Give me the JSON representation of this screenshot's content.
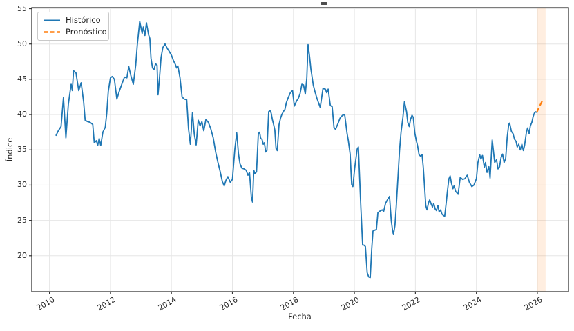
{
  "chart_data": {
    "type": "line",
    "title": "",
    "xlabel": "Fecha",
    "ylabel": "Índice",
    "xlim": [
      2009.42,
      2027.02
    ],
    "ylim": [
      14.9,
      55.15
    ],
    "xticks": [
      2010,
      2012,
      2014,
      2016,
      2018,
      2020,
      2022,
      2024,
      2026
    ],
    "yticks": [
      20,
      25,
      30,
      35,
      40,
      45,
      50,
      55
    ],
    "grid": true,
    "legend_position": "upper left",
    "colors": {
      "historical": "#1f77b4",
      "forecast": "#ff7f0e",
      "grid": "#e6e6e6",
      "spine": "#454545",
      "tick_text": "#262626"
    },
    "forecast_band": {
      "x0": 2025.98,
      "x1": 2026.27,
      "color": "#ff7f0e",
      "opacity": 0.13
    },
    "series": [
      {
        "name": "Histórico",
        "color": "#1f77b4",
        "style": "solid",
        "points": [
          [
            2010.21,
            37.0
          ],
          [
            2010.29,
            37.7
          ],
          [
            2010.38,
            38.3
          ],
          [
            2010.46,
            42.4
          ],
          [
            2010.54,
            36.7
          ],
          [
            2010.62,
            41.5
          ],
          [
            2010.71,
            44.3
          ],
          [
            2010.75,
            43.4
          ],
          [
            2010.79,
            46.2
          ],
          [
            2010.87,
            45.9
          ],
          [
            2010.96,
            43.4
          ],
          [
            2011.04,
            44.5
          ],
          [
            2011.12,
            41.8
          ],
          [
            2011.17,
            39.2
          ],
          [
            2011.25,
            39.0
          ],
          [
            2011.33,
            38.9
          ],
          [
            2011.42,
            38.6
          ],
          [
            2011.47,
            36.0
          ],
          [
            2011.54,
            36.3
          ],
          [
            2011.58,
            35.6
          ],
          [
            2011.63,
            36.6
          ],
          [
            2011.68,
            35.6
          ],
          [
            2011.75,
            37.5
          ],
          [
            2011.83,
            38.2
          ],
          [
            2011.88,
            40.2
          ],
          [
            2011.93,
            43.3
          ],
          [
            2012.0,
            45.2
          ],
          [
            2012.06,
            45.4
          ],
          [
            2012.13,
            45.0
          ],
          [
            2012.21,
            42.2
          ],
          [
            2012.29,
            43.3
          ],
          [
            2012.38,
            44.4
          ],
          [
            2012.46,
            45.3
          ],
          [
            2012.54,
            45.2
          ],
          [
            2012.6,
            46.8
          ],
          [
            2012.67,
            45.5
          ],
          [
            2012.75,
            44.3
          ],
          [
            2012.83,
            47.0
          ],
          [
            2012.88,
            49.9
          ],
          [
            2012.96,
            53.2
          ],
          [
            2013.04,
            51.5
          ],
          [
            2013.08,
            52.4
          ],
          [
            2013.13,
            51.2
          ],
          [
            2013.18,
            53.0
          ],
          [
            2013.25,
            51.3
          ],
          [
            2013.29,
            50.8
          ],
          [
            2013.33,
            48.0
          ],
          [
            2013.38,
            46.6
          ],
          [
            2013.43,
            46.4
          ],
          [
            2013.48,
            47.2
          ],
          [
            2013.53,
            47.0
          ],
          [
            2013.56,
            42.8
          ],
          [
            2013.61,
            45.3
          ],
          [
            2013.66,
            48.1
          ],
          [
            2013.72,
            49.5
          ],
          [
            2013.79,
            50.0
          ],
          [
            2013.86,
            49.4
          ],
          [
            2013.92,
            49.0
          ],
          [
            2014.0,
            48.4
          ],
          [
            2014.07,
            47.6
          ],
          [
            2014.13,
            47.1
          ],
          [
            2014.17,
            46.6
          ],
          [
            2014.21,
            46.9
          ],
          [
            2014.28,
            45.2
          ],
          [
            2014.35,
            42.5
          ],
          [
            2014.42,
            42.2
          ],
          [
            2014.5,
            42.1
          ],
          [
            2014.56,
            38.0
          ],
          [
            2014.62,
            35.8
          ],
          [
            2014.69,
            40.3
          ],
          [
            2014.75,
            37.2
          ],
          [
            2014.81,
            35.7
          ],
          [
            2014.88,
            39.2
          ],
          [
            2014.94,
            38.4
          ],
          [
            2015.0,
            39.0
          ],
          [
            2015.06,
            37.7
          ],
          [
            2015.13,
            39.3
          ],
          [
            2015.21,
            38.9
          ],
          [
            2015.29,
            38.0
          ],
          [
            2015.37,
            36.7
          ],
          [
            2015.45,
            34.7
          ],
          [
            2015.52,
            33.3
          ],
          [
            2015.6,
            31.9
          ],
          [
            2015.67,
            30.5
          ],
          [
            2015.73,
            29.9
          ],
          [
            2015.79,
            30.7
          ],
          [
            2015.85,
            31.2
          ],
          [
            2015.93,
            30.4
          ],
          [
            2016.0,
            30.8
          ],
          [
            2016.08,
            35.1
          ],
          [
            2016.14,
            37.4
          ],
          [
            2016.2,
            34.4
          ],
          [
            2016.25,
            33.0
          ],
          [
            2016.31,
            32.4
          ],
          [
            2016.38,
            32.3
          ],
          [
            2016.45,
            32.1
          ],
          [
            2016.51,
            31.4
          ],
          [
            2016.56,
            31.8
          ],
          [
            2016.62,
            28.3
          ],
          [
            2016.66,
            27.6
          ],
          [
            2016.7,
            32.1
          ],
          [
            2016.74,
            31.6
          ],
          [
            2016.79,
            31.9
          ],
          [
            2016.85,
            37.3
          ],
          [
            2016.89,
            37.5
          ],
          [
            2016.93,
            36.6
          ],
          [
            2016.97,
            36.5
          ],
          [
            2017.01,
            35.8
          ],
          [
            2017.05,
            36.0
          ],
          [
            2017.09,
            34.7
          ],
          [
            2017.13,
            34.9
          ],
          [
            2017.19,
            40.4
          ],
          [
            2017.23,
            40.6
          ],
          [
            2017.27,
            40.2
          ],
          [
            2017.31,
            39.3
          ],
          [
            2017.35,
            38.6
          ],
          [
            2017.39,
            37.8
          ],
          [
            2017.43,
            35.2
          ],
          [
            2017.47,
            34.9
          ],
          [
            2017.53,
            38.6
          ],
          [
            2017.58,
            39.5
          ],
          [
            2017.62,
            40.0
          ],
          [
            2017.68,
            40.5
          ],
          [
            2017.72,
            40.7
          ],
          [
            2017.77,
            41.7
          ],
          [
            2017.83,
            42.4
          ],
          [
            2017.9,
            43.1
          ],
          [
            2017.97,
            43.4
          ],
          [
            2018.03,
            41.2
          ],
          [
            2018.1,
            41.9
          ],
          [
            2018.16,
            42.3
          ],
          [
            2018.22,
            43.0
          ],
          [
            2018.28,
            44.3
          ],
          [
            2018.33,
            44.2
          ],
          [
            2018.39,
            42.9
          ],
          [
            2018.44,
            45.2
          ],
          [
            2018.48,
            49.9
          ],
          [
            2018.53,
            48.2
          ],
          [
            2018.57,
            46.5
          ],
          [
            2018.65,
            44.2
          ],
          [
            2018.71,
            43.2
          ],
          [
            2018.77,
            42.3
          ],
          [
            2018.83,
            41.6
          ],
          [
            2018.88,
            41.0
          ],
          [
            2018.97,
            43.7
          ],
          [
            2019.05,
            43.6
          ],
          [
            2019.09,
            43.1
          ],
          [
            2019.14,
            43.6
          ],
          [
            2019.21,
            41.3
          ],
          [
            2019.27,
            41.1
          ],
          [
            2019.33,
            38.2
          ],
          [
            2019.38,
            37.9
          ],
          [
            2019.46,
            38.7
          ],
          [
            2019.53,
            39.5
          ],
          [
            2019.61,
            39.9
          ],
          [
            2019.68,
            40.0
          ],
          [
            2019.76,
            37.3
          ],
          [
            2019.8,
            36.3
          ],
          [
            2019.86,
            34.4
          ],
          [
            2019.91,
            30.1
          ],
          [
            2019.95,
            29.8
          ],
          [
            2020.01,
            32.4
          ],
          [
            2020.09,
            35.1
          ],
          [
            2020.13,
            35.4
          ],
          [
            2020.21,
            26.9
          ],
          [
            2020.27,
            21.5
          ],
          [
            2020.31,
            21.5
          ],
          [
            2020.36,
            21.3
          ],
          [
            2020.42,
            17.6
          ],
          [
            2020.47,
            17.0
          ],
          [
            2020.52,
            16.9
          ],
          [
            2020.57,
            21.0
          ],
          [
            2020.61,
            23.5
          ],
          [
            2020.66,
            23.6
          ],
          [
            2020.72,
            23.7
          ],
          [
            2020.77,
            26.1
          ],
          [
            2020.83,
            26.3
          ],
          [
            2020.91,
            26.5
          ],
          [
            2020.96,
            26.3
          ],
          [
            2021.02,
            27.4
          ],
          [
            2021.08,
            27.9
          ],
          [
            2021.15,
            28.4
          ],
          [
            2021.21,
            24.9
          ],
          [
            2021.25,
            23.6
          ],
          [
            2021.28,
            23.0
          ],
          [
            2021.33,
            24.3
          ],
          [
            2021.37,
            26.9
          ],
          [
            2021.43,
            31.2
          ],
          [
            2021.48,
            34.9
          ],
          [
            2021.53,
            37.5
          ],
          [
            2021.59,
            39.6
          ],
          [
            2021.64,
            41.8
          ],
          [
            2021.71,
            40.4
          ],
          [
            2021.75,
            38.9
          ],
          [
            2021.8,
            38.3
          ],
          [
            2021.84,
            39.3
          ],
          [
            2021.89,
            39.9
          ],
          [
            2021.93,
            39.6
          ],
          [
            2021.98,
            37.4
          ],
          [
            2022.03,
            36.3
          ],
          [
            2022.07,
            35.6
          ],
          [
            2022.12,
            34.3
          ],
          [
            2022.17,
            34.1
          ],
          [
            2022.22,
            34.3
          ],
          [
            2022.26,
            32.4
          ],
          [
            2022.31,
            29.1
          ],
          [
            2022.34,
            27.1
          ],
          [
            2022.38,
            26.5
          ],
          [
            2022.43,
            27.5
          ],
          [
            2022.47,
            27.9
          ],
          [
            2022.52,
            27.3
          ],
          [
            2022.56,
            26.9
          ],
          [
            2022.6,
            27.4
          ],
          [
            2022.65,
            26.6
          ],
          [
            2022.69,
            26.4
          ],
          [
            2022.74,
            27.1
          ],
          [
            2022.78,
            26.2
          ],
          [
            2022.83,
            26.5
          ],
          [
            2022.87,
            25.9
          ],
          [
            2022.92,
            25.7
          ],
          [
            2022.96,
            25.6
          ],
          [
            2023.01,
            27.5
          ],
          [
            2023.05,
            29.1
          ],
          [
            2023.1,
            30.9
          ],
          [
            2023.14,
            31.3
          ],
          [
            2023.18,
            30.3
          ],
          [
            2023.23,
            29.5
          ],
          [
            2023.27,
            29.9
          ],
          [
            2023.32,
            29.1
          ],
          [
            2023.4,
            28.7
          ],
          [
            2023.47,
            31.1
          ],
          [
            2023.55,
            30.8
          ],
          [
            2023.62,
            30.9
          ],
          [
            2023.7,
            31.4
          ],
          [
            2023.77,
            30.4
          ],
          [
            2023.85,
            29.8
          ],
          [
            2023.92,
            30.0
          ],
          [
            2024.0,
            30.9
          ],
          [
            2024.05,
            33.2
          ],
          [
            2024.11,
            34.3
          ],
          [
            2024.15,
            33.7
          ],
          [
            2024.2,
            34.2
          ],
          [
            2024.26,
            32.5
          ],
          [
            2024.3,
            33.2
          ],
          [
            2024.35,
            31.8
          ],
          [
            2024.41,
            32.6
          ],
          [
            2024.45,
            31.0
          ],
          [
            2024.52,
            36.4
          ],
          [
            2024.6,
            33.2
          ],
          [
            2024.66,
            33.6
          ],
          [
            2024.71,
            32.3
          ],
          [
            2024.76,
            32.6
          ],
          [
            2024.81,
            33.9
          ],
          [
            2024.86,
            34.4
          ],
          [
            2024.91,
            33.2
          ],
          [
            2024.96,
            33.8
          ],
          [
            2025.01,
            36.8
          ],
          [
            2025.06,
            38.6
          ],
          [
            2025.09,
            38.8
          ],
          [
            2025.15,
            37.6
          ],
          [
            2025.2,
            37.3
          ],
          [
            2025.25,
            36.5
          ],
          [
            2025.3,
            36.2
          ],
          [
            2025.34,
            35.4
          ],
          [
            2025.39,
            35.8
          ],
          [
            2025.44,
            35.0
          ],
          [
            2025.49,
            35.8
          ],
          [
            2025.54,
            34.9
          ],
          [
            2025.58,
            35.6
          ],
          [
            2025.64,
            37.5
          ],
          [
            2025.68,
            38.1
          ],
          [
            2025.73,
            37.3
          ],
          [
            2025.77,
            38.4
          ],
          [
            2025.82,
            38.9
          ],
          [
            2025.86,
            39.7
          ],
          [
            2025.9,
            40.2
          ],
          [
            2025.94,
            40.4
          ],
          [
            2025.98,
            40.3
          ]
        ]
      },
      {
        "name": "Pronóstico",
        "color": "#ff7f0e",
        "style": "dashed",
        "points": [
          [
            2025.98,
            40.3
          ],
          [
            2026.05,
            41.0
          ],
          [
            2026.12,
            41.6
          ],
          [
            2026.19,
            42.2
          ]
        ]
      }
    ]
  }
}
